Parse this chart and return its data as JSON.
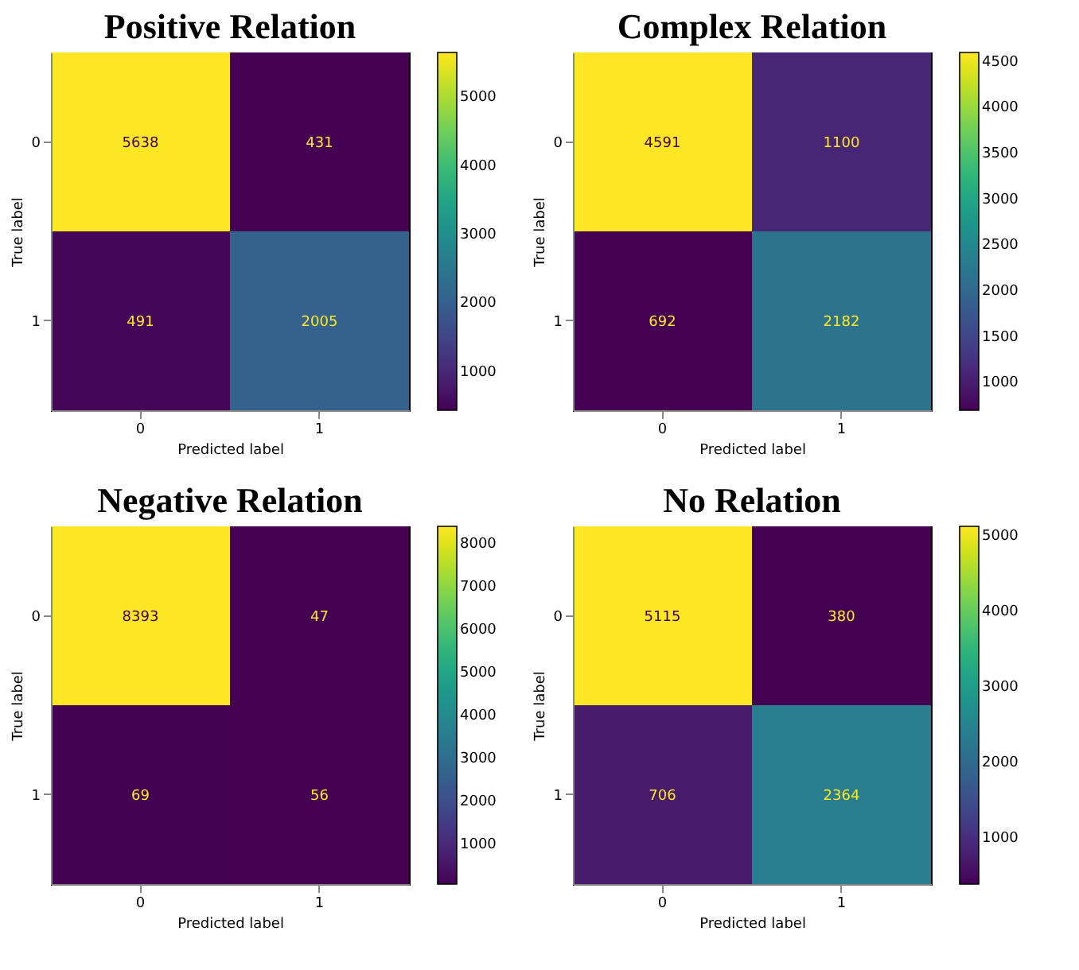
{
  "chart_data": [
    {
      "type": "heatmap",
      "title": "Positive Relation",
      "xlabel": "Predicted label",
      "ylabel": "True label",
      "categories": [
        "0",
        "1"
      ],
      "y_categories": [
        "0",
        "1"
      ],
      "cells": [
        [
          5638,
          431
        ],
        [
          491,
          2005
        ]
      ],
      "clim": [
        431,
        5638
      ],
      "cticks": [
        1000,
        2000,
        3000,
        4000,
        5000
      ],
      "data_labels": true
    },
    {
      "type": "heatmap",
      "title": "Complex Relation",
      "xlabel": "Predicted label",
      "ylabel": "True label",
      "categories": [
        "0",
        "1"
      ],
      "y_categories": [
        "0",
        "1"
      ],
      "cells": [
        [
          4591,
          1100
        ],
        [
          692,
          2182
        ]
      ],
      "clim": [
        692,
        4591
      ],
      "cticks": [
        1000,
        1500,
        2000,
        2500,
        3000,
        3500,
        4000,
        4500
      ],
      "data_labels": true
    },
    {
      "type": "heatmap",
      "title": "Negative Relation",
      "xlabel": "Predicted label",
      "ylabel": "True label",
      "categories": [
        "0",
        "1"
      ],
      "y_categories": [
        "0",
        "1"
      ],
      "cells": [
        [
          8393,
          47
        ],
        [
          69,
          56
        ]
      ],
      "clim": [
        47,
        8393
      ],
      "cticks": [
        1000,
        2000,
        3000,
        4000,
        5000,
        6000,
        7000,
        8000
      ],
      "data_labels": true
    },
    {
      "type": "heatmap",
      "title": "No Relation",
      "xlabel": "Predicted label",
      "ylabel": "True label",
      "categories": [
        "0",
        "1"
      ],
      "y_categories": [
        "0",
        "1"
      ],
      "cells": [
        [
          5115,
          380
        ],
        [
          706,
          2364
        ]
      ],
      "clim": [
        380,
        5115
      ],
      "cticks": [
        1000,
        2000,
        3000,
        4000,
        5000
      ],
      "data_labels": true
    }
  ]
}
